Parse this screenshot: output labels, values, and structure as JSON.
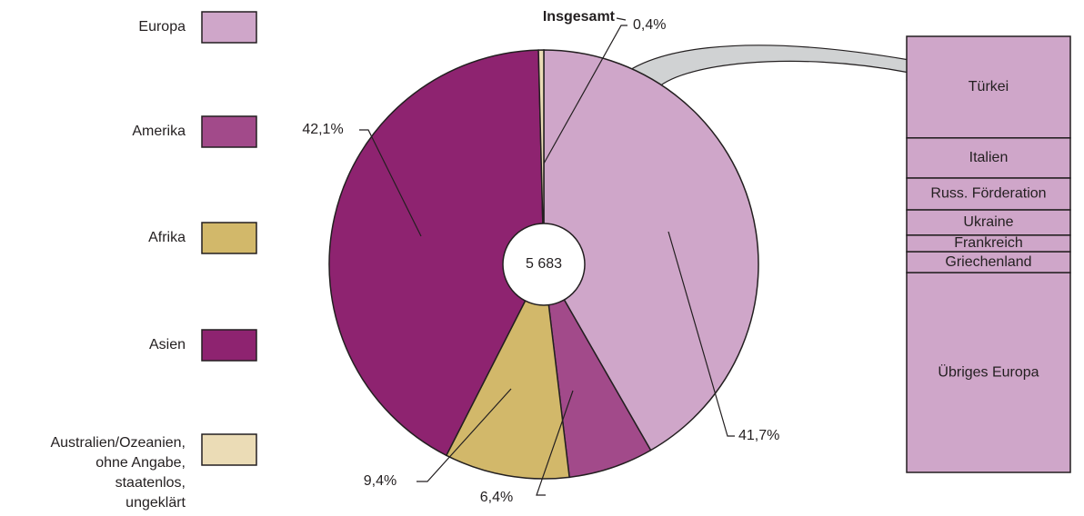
{
  "chart_data": [
    {
      "type": "pie",
      "annotation": "Insgesamt",
      "center_label": "5 683",
      "categories": [
        "Europa",
        "Amerika",
        "Afrika",
        "Asien",
        "Australien/Ozeanien,\nohne Angabe,\nstaatenlos,\nungeklärt"
      ],
      "values": [
        41.7,
        6.4,
        9.4,
        42.1,
        0.4
      ],
      "value_labels": [
        "41,7%",
        "6,4%",
        "9,4%",
        "42,1%",
        "0,4%"
      ],
      "colors": [
        "#cfa6c9",
        "#a24a8a",
        "#d2b86a",
        "#8e2370",
        "#ebdcb6"
      ],
      "legend": "left"
    },
    {
      "type": "stacked_bar",
      "categories": [
        "Türkei",
        "Italien",
        "Russ. Förderation",
        "Ukraine",
        "Frankreich",
        "Griechenland",
        "Übriges Europa"
      ],
      "values": [
        23.3,
        9.2,
        7.3,
        5.8,
        3.8,
        4.8,
        45.8
      ],
      "color": "#cfa6c9"
    }
  ]
}
